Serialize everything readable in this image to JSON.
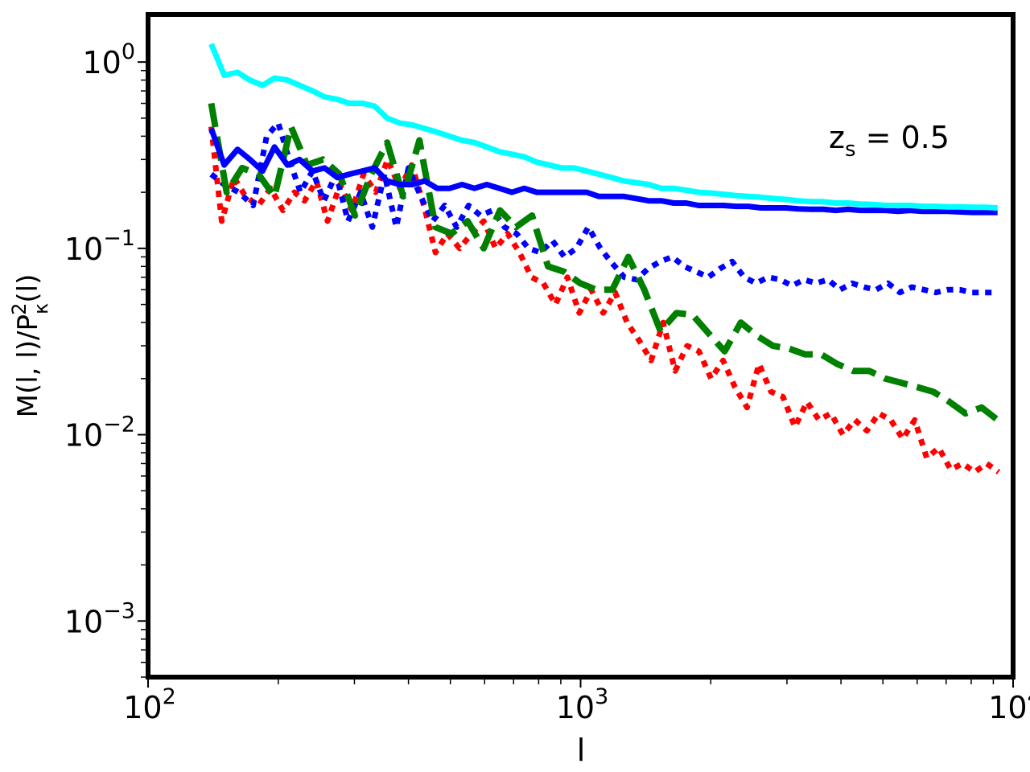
{
  "chart_data": {
    "type": "line",
    "xscale": "log",
    "yscale": "log",
    "xlim": [
      100,
      10000
    ],
    "ylim": [
      0.0005,
      1.8
    ],
    "xlabel": "l",
    "ylabel": "M(l, l)/P_κ^2(l)",
    "annotation": "z_s = 0.5",
    "grid": false,
    "x_ticks": [
      {
        "value": 100,
        "base": "10",
        "exp": "2"
      },
      {
        "value": 1000,
        "base": "10",
        "exp": "3"
      },
      {
        "value": 10000,
        "base": "10",
        "exp": "4"
      }
    ],
    "y_ticks": [
      {
        "value": 0.001,
        "base": "10",
        "exp": "−3"
      },
      {
        "value": 0.01,
        "base": "10",
        "exp": "−2"
      },
      {
        "value": 0.1,
        "base": "10",
        "exp": "−1"
      },
      {
        "value": 1,
        "base": "10",
        "exp": "0"
      }
    ],
    "series": [
      {
        "color": "#ff0000",
        "style": "dotted",
        "x": [
          140,
          148,
          158,
          168,
          180,
          192,
          205,
          218,
          230,
          245,
          260,
          278,
          296,
          315,
          336,
          358,
          382,
          407,
          434,
          462,
          492,
          525,
          560,
          597,
          636,
          678,
          722,
          770,
          820,
          875,
          932,
          993,
          1058,
          1128,
          1202,
          1281,
          1366,
          1456,
          1552,
          1654,
          1763,
          1879,
          2003,
          2135,
          2275,
          2426,
          2585,
          2756,
          2937,
          3131,
          3337,
          3557,
          3791,
          4041,
          4307,
          4591,
          4893,
          5215,
          5559,
          5925,
          6315,
          6731,
          7174,
          7647,
          8150,
          8687,
          9259
        ],
        "y": [
          0.45,
          0.14,
          0.24,
          0.19,
          0.17,
          0.21,
          0.16,
          0.2,
          0.18,
          0.23,
          0.14,
          0.22,
          0.16,
          0.25,
          0.2,
          0.3,
          0.21,
          0.28,
          0.17,
          0.095,
          0.12,
          0.1,
          0.12,
          0.14,
          0.1,
          0.12,
          0.095,
          0.07,
          0.065,
          0.05,
          0.07,
          0.045,
          0.06,
          0.045,
          0.058,
          0.04,
          0.032,
          0.025,
          0.04,
          0.022,
          0.03,
          0.028,
          0.02,
          0.025,
          0.018,
          0.014,
          0.024,
          0.017,
          0.016,
          0.011,
          0.015,
          0.012,
          0.013,
          0.01,
          0.012,
          0.0105,
          0.013,
          0.012,
          0.0095,
          0.012,
          0.0075,
          0.0085,
          0.0065,
          0.007,
          0.0063,
          0.007,
          0.0063
        ]
      },
      {
        "color": "#0000ff",
        "style": "dotted",
        "x": [
          140,
          150,
          162,
          175,
          188,
          200,
          212,
          225,
          240,
          255,
          272,
          290,
          310,
          330,
          352,
          375,
          400,
          427,
          455,
          485,
          517,
          551,
          587,
          626,
          667,
          711,
          758,
          808,
          861,
          918,
          978,
          1042,
          1111,
          1184,
          1262,
          1345,
          1434,
          1528,
          1629,
          1736,
          1851,
          1973,
          2103,
          2241,
          2389,
          2546,
          2714,
          2893,
          3083,
          3286,
          3503,
          3734,
          3980,
          4242,
          4521,
          4819,
          5136,
          5475,
          5835,
          6220,
          6630,
          7066,
          7532,
          8028,
          8557,
          9121
        ],
        "y": [
          0.25,
          0.22,
          0.2,
          0.17,
          0.4,
          0.47,
          0.3,
          0.2,
          0.26,
          0.18,
          0.25,
          0.14,
          0.2,
          0.13,
          0.25,
          0.13,
          0.27,
          0.19,
          0.14,
          0.17,
          0.13,
          0.17,
          0.15,
          0.16,
          0.13,
          0.12,
          0.1,
          0.095,
          0.11,
          0.09,
          0.1,
          0.13,
          0.1,
          0.083,
          0.07,
          0.068,
          0.078,
          0.085,
          0.09,
          0.08,
          0.075,
          0.07,
          0.078,
          0.085,
          0.07,
          0.065,
          0.07,
          0.068,
          0.063,
          0.068,
          0.065,
          0.068,
          0.06,
          0.065,
          0.062,
          0.06,
          0.065,
          0.058,
          0.062,
          0.06,
          0.058,
          0.06,
          0.06,
          0.058,
          0.058,
          0.058
        ]
      },
      {
        "color": "#008000",
        "style": "dashed",
        "x": [
          140,
          152,
          165,
          180,
          196,
          214,
          233,
          254,
          277,
          301,
          328,
          357,
          389,
          424,
          462,
          503,
          548,
          597,
          651,
          709,
          772,
          841,
          916,
          998,
          1087,
          1184,
          1289,
          1404,
          1530,
          1666,
          1815,
          1977,
          2153,
          2346,
          2555,
          2783,
          3031,
          3302,
          3596,
          3917,
          4267,
          4648,
          5062,
          5514,
          6006,
          6541,
          7125,
          7761,
          8453,
          9207
        ],
        "y": [
          0.6,
          0.2,
          0.27,
          0.25,
          0.19,
          0.45,
          0.28,
          0.3,
          0.25,
          0.15,
          0.25,
          0.37,
          0.19,
          0.38,
          0.13,
          0.12,
          0.14,
          0.1,
          0.16,
          0.13,
          0.15,
          0.08,
          0.075,
          0.065,
          0.06,
          0.06,
          0.09,
          0.06,
          0.036,
          0.045,
          0.044,
          0.035,
          0.028,
          0.04,
          0.034,
          0.03,
          0.029,
          0.027,
          0.027,
          0.024,
          0.022,
          0.022,
          0.02,
          0.019,
          0.018,
          0.017,
          0.015,
          0.013,
          0.014,
          0.012
        ]
      },
      {
        "color": "#0000ff",
        "style": "solid",
        "x": [
          140,
          150,
          161,
          172,
          184,
          196,
          210,
          224,
          240,
          256,
          274,
          292,
          313,
          334,
          357,
          382,
          408,
          436,
          466,
          498,
          532,
          568,
          607,
          649,
          694,
          741,
          792,
          846,
          904,
          966,
          1032,
          1103,
          1179,
          1260,
          1346,
          1438,
          1537,
          1642,
          1755,
          1875,
          2004,
          2141,
          2288,
          2445,
          2612,
          2791,
          2983,
          3187,
          3405,
          3639,
          3888,
          4155,
          4440,
          4744,
          5069,
          5417,
          5788,
          6185,
          6609,
          7062,
          7546,
          8064,
          8616,
          9207
        ],
        "y": [
          0.44,
          0.28,
          0.34,
          0.3,
          0.26,
          0.35,
          0.28,
          0.3,
          0.26,
          0.27,
          0.24,
          0.25,
          0.26,
          0.27,
          0.23,
          0.22,
          0.22,
          0.23,
          0.21,
          0.21,
          0.22,
          0.21,
          0.22,
          0.21,
          0.2,
          0.21,
          0.2,
          0.2,
          0.2,
          0.2,
          0.2,
          0.19,
          0.19,
          0.19,
          0.185,
          0.18,
          0.18,
          0.175,
          0.175,
          0.17,
          0.17,
          0.17,
          0.168,
          0.168,
          0.165,
          0.165,
          0.165,
          0.163,
          0.162,
          0.162,
          0.16,
          0.162,
          0.16,
          0.16,
          0.16,
          0.158,
          0.16,
          0.158,
          0.158,
          0.158,
          0.157,
          0.156,
          0.156,
          0.156
        ]
      },
      {
        "color": "#00ffff",
        "style": "solid",
        "x": [
          140,
          150,
          161,
          172,
          184,
          196,
          210,
          224,
          240,
          256,
          274,
          292,
          313,
          334,
          357,
          382,
          408,
          436,
          466,
          498,
          532,
          568,
          607,
          649,
          694,
          741,
          792,
          846,
          904,
          966,
          1032,
          1103,
          1179,
          1260,
          1346,
          1438,
          1537,
          1642,
          1755,
          1875,
          2004,
          2141,
          2288,
          2445,
          2612,
          2791,
          2983,
          3187,
          3405,
          3639,
          3888,
          4155,
          4440,
          4744,
          5069,
          5417,
          5788,
          6185,
          6609,
          7062,
          7546,
          8064,
          8616,
          9207
        ],
        "y": [
          1.25,
          0.85,
          0.88,
          0.8,
          0.75,
          0.82,
          0.8,
          0.75,
          0.7,
          0.65,
          0.63,
          0.6,
          0.6,
          0.58,
          0.5,
          0.47,
          0.46,
          0.44,
          0.42,
          0.4,
          0.38,
          0.37,
          0.35,
          0.33,
          0.32,
          0.31,
          0.29,
          0.28,
          0.27,
          0.27,
          0.26,
          0.25,
          0.24,
          0.23,
          0.225,
          0.22,
          0.21,
          0.21,
          0.205,
          0.2,
          0.198,
          0.195,
          0.192,
          0.19,
          0.188,
          0.185,
          0.183,
          0.18,
          0.178,
          0.178,
          0.175,
          0.175,
          0.173,
          0.172,
          0.17,
          0.17,
          0.17,
          0.168,
          0.168,
          0.167,
          0.167,
          0.166,
          0.166,
          0.165
        ]
      }
    ]
  }
}
